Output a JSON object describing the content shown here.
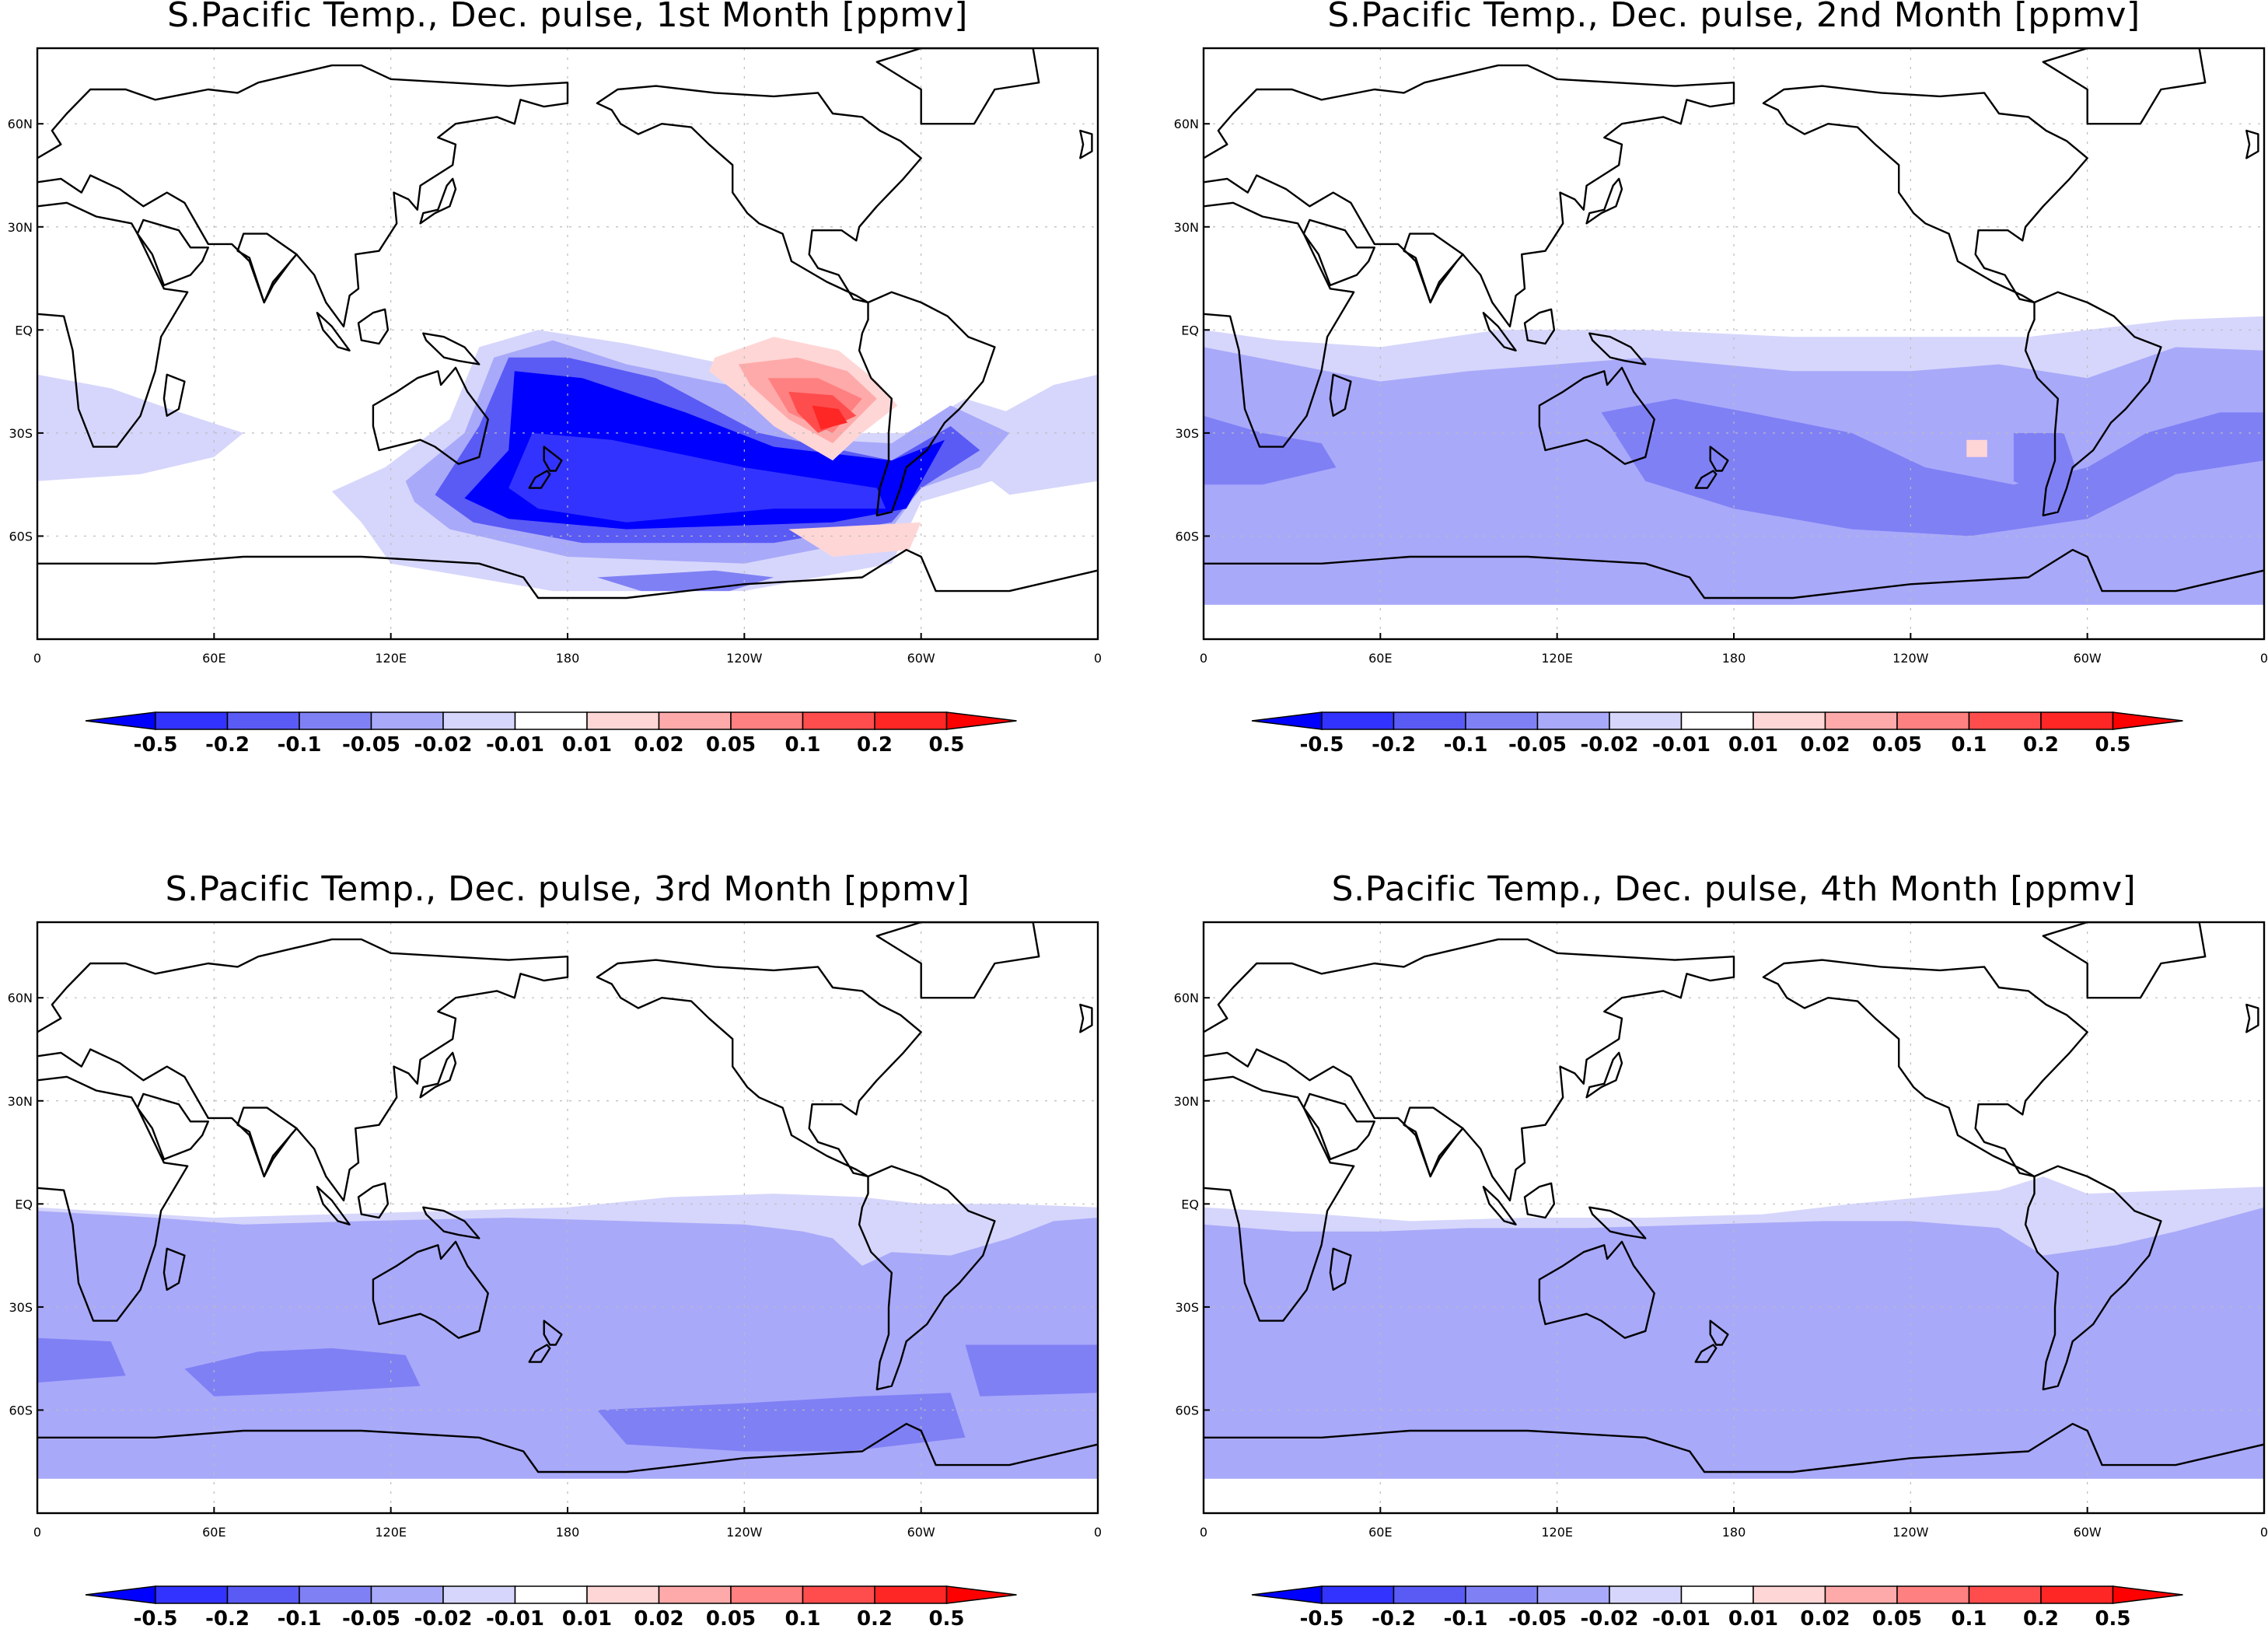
{
  "panels": [
    {
      "title": "S.Pacific Temp., Dec. pulse, 1st Month [ppmv]",
      "month": 1
    },
    {
      "title": "S.Pacific Temp., Dec. pulse, 2nd Month [ppmv]",
      "month": 2
    },
    {
      "title": "S.Pacific Temp., Dec. pulse, 3rd Month [ppmv]",
      "month": 3
    },
    {
      "title": "S.Pacific Temp., Dec. pulse, 4th Month [ppmv]",
      "month": 4
    }
  ],
  "axes": {
    "lat_labels": [
      "60N",
      "30N",
      "EQ",
      "30S",
      "60S"
    ],
    "lon_labels": [
      "0",
      "60E",
      "120E",
      "180",
      "120W",
      "60W",
      "0"
    ]
  },
  "colorbar": {
    "labels": [
      "-0.5",
      "-0.2",
      "-0.1",
      "-0.05",
      "-0.02",
      "-0.01",
      "0.01",
      "0.02",
      "0.05",
      "0.1",
      "0.2",
      "0.5"
    ],
    "colors": [
      "#0000ff",
      "#3333ff",
      "#5a5af5",
      "#8080f5",
      "#a9a9fa",
      "#d6d6fc",
      "#ffffff",
      "#ffd6d6",
      "#ffaaaa",
      "#ff8080",
      "#ff4d4d",
      "#ff2626",
      "#ff0000"
    ]
  },
  "map_style": {
    "coast_color": "#000000",
    "grid_color": "#bbbbbb",
    "levels": {
      "b5": "#0000ff",
      "b4": "#3333ff",
      "b3": "#5a5af5",
      "b2": "#8080f5",
      "b1": "#a9a9fa",
      "b0": "#d6d6fc",
      "r0": "#ffd6d6",
      "r1": "#ffaaaa",
      "r2": "#ff8080",
      "r3": "#ff4d4d",
      "r4": "#ff2626"
    }
  }
}
